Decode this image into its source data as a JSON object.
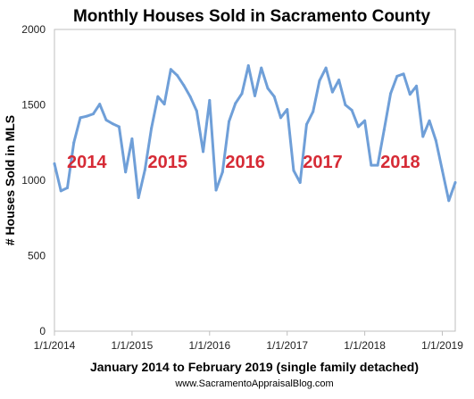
{
  "chart_data": {
    "type": "line",
    "title": "Monthly Houses Sold in Sacramento County",
    "xlabel": "January 2014 to February 2019 (single family detached)",
    "ylabel": "# Houses Sold in MLS",
    "ylim": [
      0,
      2000
    ],
    "y_ticks": [
      "0",
      "500",
      "1000",
      "1500",
      "2000"
    ],
    "x_ticks": [
      {
        "label": "1/1/2014",
        "index": 0
      },
      {
        "label": "1/1/2015",
        "index": 12
      },
      {
        "label": "1/1/2016",
        "index": 24
      },
      {
        "label": "1/1/2017",
        "index": 36
      },
      {
        "label": "1/1/2018",
        "index": 48
      },
      {
        "label": "1/1/2019",
        "index": 60
      }
    ],
    "grid": false,
    "legend": "none",
    "series": [
      {
        "color": "#6f9fd8",
        "values": [
          1110,
          930,
          950,
          1250,
          1415,
          1425,
          1440,
          1505,
          1400,
          1375,
          1355,
          1055,
          1275,
          885,
          1070,
          1345,
          1555,
          1505,
          1735,
          1695,
          1630,
          1555,
          1460,
          1190,
          1530,
          935,
          1055,
          1390,
          1510,
          1575,
          1760,
          1560,
          1745,
          1610,
          1555,
          1415,
          1470,
          1065,
          985,
          1370,
          1455,
          1660,
          1745,
          1585,
          1665,
          1500,
          1465,
          1355,
          1395,
          1100,
          1100,
          1335,
          1575,
          1690,
          1705,
          1570,
          1625,
          1290,
          1395,
          1265,
          1065,
          865,
          985
        ]
      }
    ],
    "annotations": [
      {
        "text": "2014",
        "x_index": 5,
        "y": 1125,
        "color": "#d62b36"
      },
      {
        "text": "2015",
        "x_index": 17.5,
        "y": 1125,
        "color": "#d62b36"
      },
      {
        "text": "2016",
        "x_index": 29.5,
        "y": 1125,
        "color": "#d62b36"
      },
      {
        "text": "2017",
        "x_index": 41.5,
        "y": 1125,
        "color": "#d62b36"
      },
      {
        "text": "2018",
        "x_index": 53.5,
        "y": 1125,
        "color": "#d62b36"
      }
    ],
    "credit": "www.SacramentoAppraisalBlog.com"
  }
}
